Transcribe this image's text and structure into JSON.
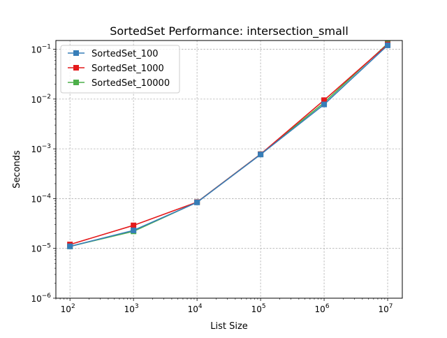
{
  "chart_data": {
    "type": "line",
    "title": "SortedSet Performance: intersection_small",
    "xlabel": "List Size",
    "ylabel": "Seconds",
    "xscale": "log",
    "yscale": "log",
    "xlim": [
      60,
      17000000
    ],
    "ylim": [
      1e-06,
      0.15
    ],
    "grid": true,
    "legend_position": "top-left",
    "x": [
      100,
      1000,
      10000,
      100000,
      1000000,
      10000000
    ],
    "x_ticks": [
      {
        "value": 100,
        "base": "10",
        "exp": "2"
      },
      {
        "value": 1000,
        "base": "10",
        "exp": "3"
      },
      {
        "value": 10000,
        "base": "10",
        "exp": "4"
      },
      {
        "value": 100000,
        "base": "10",
        "exp": "5"
      },
      {
        "value": 1000000,
        "base": "10",
        "exp": "6"
      },
      {
        "value": 10000000,
        "base": "10",
        "exp": "7"
      }
    ],
    "y_ticks": [
      {
        "value": 1e-06,
        "base": "10",
        "exp": "−6"
      },
      {
        "value": 1e-05,
        "base": "10",
        "exp": "−5"
      },
      {
        "value": 0.0001,
        "base": "10",
        "exp": "−4"
      },
      {
        "value": 0.001,
        "base": "10",
        "exp": "−3"
      },
      {
        "value": 0.01,
        "base": "10",
        "exp": "−2"
      },
      {
        "value": 0.1,
        "base": "10",
        "exp": "−1"
      }
    ],
    "series": [
      {
        "name": "SortedSet_10000",
        "color": "#4daf4a",
        "marker": "square",
        "values": [
          1.1e-05,
          2.2e-05,
          8.5e-05,
          0.00078,
          0.0085,
          0.13
        ]
      },
      {
        "name": "SortedSet_1000",
        "color": "#e41a1c",
        "marker": "square",
        "values": [
          1.2e-05,
          2.9e-05,
          8.5e-05,
          0.00078,
          0.0095,
          0.125
        ]
      },
      {
        "name": "SortedSet_100",
        "color": "#377eb8",
        "marker": "square",
        "values": [
          1.1e-05,
          2.3e-05,
          8.4e-05,
          0.00077,
          0.0078,
          0.12
        ]
      }
    ],
    "legend_order": [
      "SortedSet_100",
      "SortedSet_1000",
      "SortedSet_10000"
    ]
  }
}
